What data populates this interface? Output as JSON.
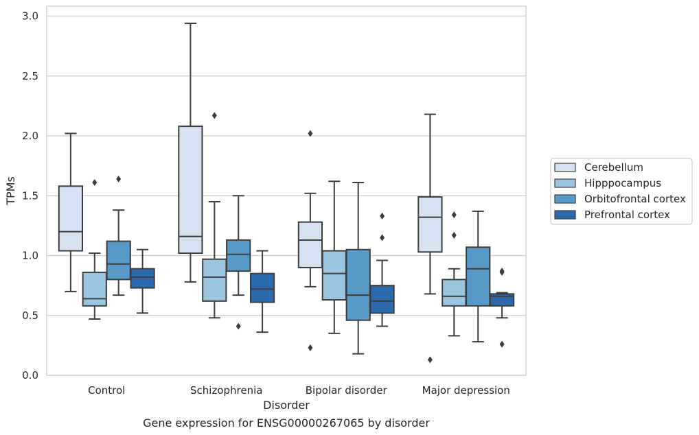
{
  "chart_data": {
    "type": "box",
    "title": "Gene expression for ENSG00000267065 by disorder",
    "xlabel": "Disorder",
    "ylabel": "TPMs",
    "ylim": [
      0,
      3.0
    ],
    "yticks": [
      "0.0",
      "0.5",
      "1.0",
      "1.5",
      "2.0",
      "2.5",
      "3.0"
    ],
    "grid": "horizontal",
    "legend_position": "right",
    "categories": [
      "Control",
      "Schizophrenia",
      "Bipolar disorder",
      "Major depression"
    ],
    "series": [
      {
        "name": "Cerebellum",
        "color": "#d4e2f1",
        "boxes": [
          {
            "whislo": 0.7,
            "q1": 1.04,
            "med": 1.2,
            "q3": 1.58,
            "whishi": 2.02,
            "fliers": []
          },
          {
            "whislo": 0.78,
            "q1": 1.02,
            "med": 1.16,
            "q3": 2.08,
            "whishi": 2.94,
            "fliers": []
          },
          {
            "whislo": 0.74,
            "q1": 0.9,
            "med": 1.13,
            "q3": 1.28,
            "whishi": 1.52,
            "fliers": [
              2.02,
              0.23
            ]
          },
          {
            "whislo": 0.68,
            "q1": 1.03,
            "med": 1.32,
            "q3": 1.49,
            "whishi": 2.18,
            "fliers": [
              0.13
            ]
          }
        ]
      },
      {
        "name": "Hipppocampus",
        "color": "#9ac5de",
        "boxes": [
          {
            "whislo": 0.47,
            "q1": 0.58,
            "med": 0.64,
            "q3": 0.86,
            "whishi": 1.02,
            "fliers": [
              1.61
            ]
          },
          {
            "whislo": 0.48,
            "q1": 0.62,
            "med": 0.82,
            "q3": 0.97,
            "whishi": 1.45,
            "fliers": [
              2.17
            ]
          },
          {
            "whislo": 0.35,
            "q1": 0.63,
            "med": 0.85,
            "q3": 1.04,
            "whishi": 1.62,
            "fliers": []
          },
          {
            "whislo": 0.33,
            "q1": 0.58,
            "med": 0.66,
            "q3": 0.8,
            "whishi": 0.89,
            "fliers": [
              1.34,
              1.17
            ]
          }
        ]
      },
      {
        "name": "Orbitofrontal cortex",
        "color": "#5799c7",
        "boxes": [
          {
            "whislo": 0.67,
            "q1": 0.8,
            "med": 0.93,
            "q3": 1.12,
            "whishi": 1.38,
            "fliers": [
              1.64
            ]
          },
          {
            "whislo": 0.67,
            "q1": 0.87,
            "med": 1.01,
            "q3": 1.13,
            "whishi": 1.5,
            "fliers": [
              0.41
            ]
          },
          {
            "whislo": 0.18,
            "q1": 0.46,
            "med": 0.67,
            "q3": 1.05,
            "whishi": 1.61,
            "fliers": []
          },
          {
            "whislo": 0.28,
            "q1": 0.58,
            "med": 0.89,
            "q3": 1.07,
            "whishi": 1.37,
            "fliers": []
          }
        ]
      },
      {
        "name": "Prefrontal cortex",
        "color": "#2b6aad",
        "boxes": [
          {
            "whislo": 0.52,
            "q1": 0.73,
            "med": 0.82,
            "q3": 0.89,
            "whishi": 1.05,
            "fliers": []
          },
          {
            "whislo": 0.36,
            "q1": 0.61,
            "med": 0.72,
            "q3": 0.85,
            "whishi": 1.04,
            "fliers": []
          },
          {
            "whislo": 0.41,
            "q1": 0.52,
            "med": 0.62,
            "q3": 0.75,
            "whishi": 0.96,
            "fliers": [
              1.33,
              1.15
            ]
          },
          {
            "whislo": 0.48,
            "q1": 0.58,
            "med": 0.66,
            "q3": 0.68,
            "whishi": 0.69,
            "fliers": [
              0.87,
              0.86,
              0.26
            ]
          }
        ]
      }
    ]
  }
}
